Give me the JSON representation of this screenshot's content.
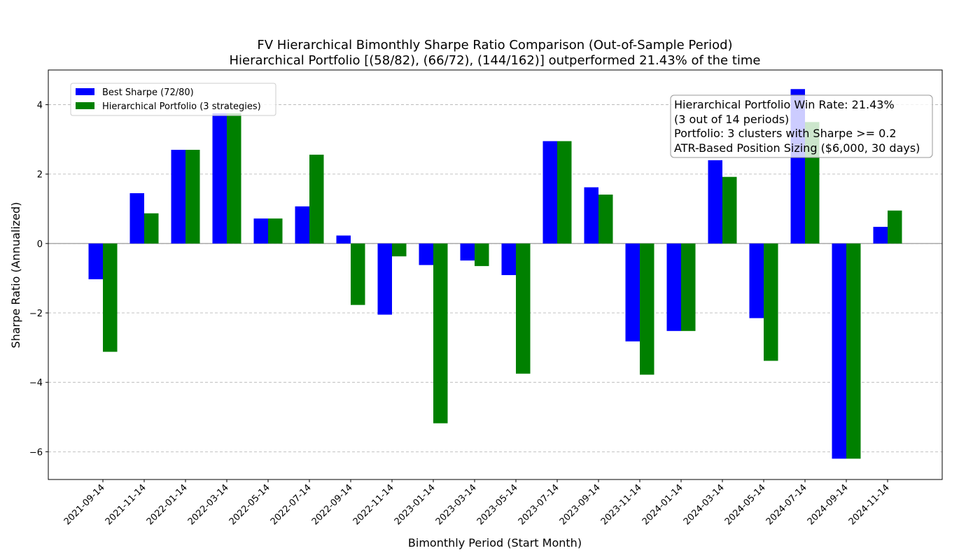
{
  "chart_data": {
    "type": "bar",
    "title": "FV Hierarchical Bimonthly Sharpe Ratio Comparison (Out-of-Sample Period)",
    "subtitle": "Hierarchical Portfolio [(58/82), (66/72), (144/162)] outperformed 21.43% of the time",
    "xlabel": "Bimonthly Period (Start Month)",
    "ylabel": "Sharpe Ratio (Annualized)",
    "ylim": [
      -6.8,
      5.0
    ],
    "yticks": [
      -6,
      -4,
      -2,
      0,
      2,
      4
    ],
    "ytick_labels": [
      "−6",
      "−4",
      "−2",
      "0",
      "2",
      "4"
    ],
    "grid": "y dashed",
    "legend_position": "upper-left",
    "categories": [
      "2021-09-14",
      "2021-11-14",
      "2022-01-14",
      "2022-03-14",
      "2022-05-14",
      "2022-07-14",
      "2022-09-14",
      "2022-11-14",
      "2023-01-14",
      "2023-03-14",
      "2023-05-14",
      "2023-07-14",
      "2023-09-14",
      "2023-11-14",
      "2024-01-14",
      "2024-03-14",
      "2024-05-14",
      "2024-07-14",
      "2024-09-14",
      "2024-11-14"
    ],
    "series": [
      {
        "name": "Best Sharpe (72/80)",
        "color": "#0000ff",
        "values": [
          -1.03,
          1.45,
          2.7,
          3.75,
          0.72,
          1.07,
          0.23,
          -2.05,
          -0.62,
          -0.49,
          -0.91,
          2.95,
          1.62,
          -2.82,
          -2.52,
          2.4,
          -2.15,
          4.45,
          -6.2,
          0.48
        ]
      },
      {
        "name": "Hierarchical Portfolio (3 strategies)",
        "color": "#008000",
        "values": [
          -3.12,
          0.87,
          2.7,
          3.75,
          0.72,
          2.56,
          -1.77,
          -0.37,
          -5.18,
          -0.65,
          -3.75,
          2.95,
          1.41,
          -3.78,
          -2.52,
          1.92,
          -3.38,
          3.5,
          -6.2,
          0.95
        ]
      }
    ],
    "annotation_lines": [
      "Hierarchical Portfolio Win Rate: 21.43%",
      "(3 out of 14 periods)",
      "Portfolio: 3 clusters with Sharpe >= 0.2",
      "ATR-Based Position Sizing ($6,000, 30 days)"
    ]
  }
}
